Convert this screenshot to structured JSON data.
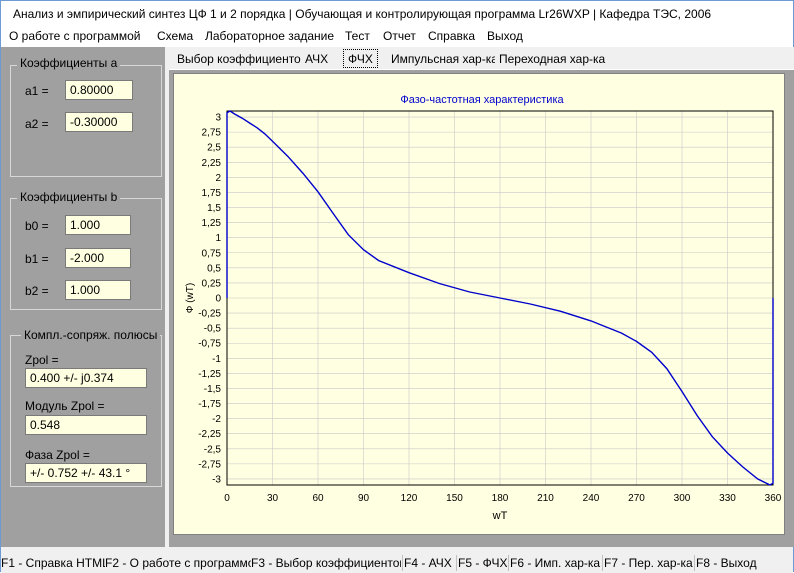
{
  "window": {
    "title": "Анализ и эмпирический синтез ЦФ 1 и 2 порядка | Обучающая и контролирующая программа Lr26WXP | Кафедра ТЭС, 2006"
  },
  "menu": [
    "О работе с программой",
    "Схема",
    "Лабораторное задание",
    "Тест",
    "Отчет",
    "Справка",
    "Выход"
  ],
  "left_panel": {
    "coef_a": {
      "title": "Коэффициенты  a",
      "a1_label": "a1 =",
      "a1_value": "0.80000",
      "a2_label": "a2 =",
      "a2_value": "-0.30000"
    },
    "coef_b": {
      "title": "Коэффициенты  b",
      "b0_label": "b0 =",
      "b0_value": "1.000",
      "b1_label": "b1 =",
      "b1_value": "-2.000",
      "b2_label": "b2 =",
      "b2_value": "1.000"
    },
    "poles": {
      "title": "Компл.-сопряж. полюсы",
      "zpol_label": "Zpol =",
      "zpol_value": "0.400 +/- j0.374",
      "modul_label": "Модуль Zpol =",
      "modul_value": "0.548",
      "phase_label": "Фаза Zpol =",
      "phase_value": "+/- 0.752    +/- 43.1 °"
    }
  },
  "tabs": [
    {
      "label": "Выбор коэффициентов",
      "selected": false
    },
    {
      "label": "АЧХ",
      "selected": false
    },
    {
      "label": "ФЧХ",
      "selected": true
    },
    {
      "label": "Импульсная хар-ка",
      "selected": false
    },
    {
      "label": "Переходная хар-ка",
      "selected": false
    }
  ],
  "status_bar": [
    "F1 - Справка HTML",
    "F2 - О работе с программой",
    "F3 - Выбор коэффициентов",
    "F4 - АЧХ",
    "F5 - ФЧХ",
    "F6 - Имп. хар-ка",
    "F7 - Пер. хар-ка",
    "F8 - Выход"
  ],
  "colors": {
    "plot_line": "#0000cc",
    "chart_bg": "#ffffe1",
    "panel_bg": "#a0a0a0",
    "grid": "#c8c8c8",
    "title": "#0000cc"
  },
  "chart_data": {
    "type": "line",
    "title": "Фазо-частотная характеристика",
    "xlabel": "wT",
    "ylabel": "Ф (wT)",
    "xlim": [
      0,
      360
    ],
    "ylim": [
      -3.1,
      3.1
    ],
    "x_ticks": [
      0,
      30,
      60,
      90,
      120,
      150,
      180,
      210,
      240,
      270,
      300,
      330,
      360
    ],
    "y_ticks": [
      "3",
      "2,75",
      "2,5",
      "2,25",
      "2",
      "1,75",
      "1,5",
      "1,25",
      "1",
      "0,75",
      "0,5",
      "0,25",
      "0",
      "-0,25",
      "-0,5",
      "-0,75",
      "-1",
      "-1,25",
      "-1,5",
      "-1,75",
      "-2",
      "-2,25",
      "-2,5",
      "-2,75",
      "-3"
    ],
    "y_tick_values": [
      3,
      2.75,
      2.5,
      2.25,
      2,
      1.75,
      1.5,
      1.25,
      1,
      0.75,
      0.5,
      0.25,
      0,
      -0.25,
      -0.5,
      -0.75,
      -1,
      -1.25,
      -1.5,
      -1.75,
      -2,
      -2.25,
      -2.5,
      -2.75,
      -3
    ],
    "grid": true,
    "series": [
      {
        "x": [
          0,
          0,
          2,
          5,
          10,
          15,
          20,
          25,
          30,
          40,
          50,
          60,
          70,
          80,
          90,
          100,
          120,
          140,
          160,
          180,
          200,
          220,
          240,
          250,
          260,
          270,
          280,
          290,
          300,
          310,
          320,
          330,
          340,
          350,
          358,
          360,
          360,
          360
        ],
        "y": [
          0,
          3.07,
          3.1,
          3.05,
          2.98,
          2.9,
          2.82,
          2.72,
          2.6,
          2.35,
          2.07,
          1.76,
          1.4,
          1.05,
          0.8,
          0.62,
          0.42,
          0.24,
          0.1,
          0.0,
          -0.1,
          -0.22,
          -0.38,
          -0.48,
          -0.58,
          -0.72,
          -0.9,
          -1.17,
          -1.55,
          -1.95,
          -2.3,
          -2.57,
          -2.8,
          -3.0,
          -3.1,
          -3.07,
          -1.5,
          0
        ]
      }
    ]
  }
}
